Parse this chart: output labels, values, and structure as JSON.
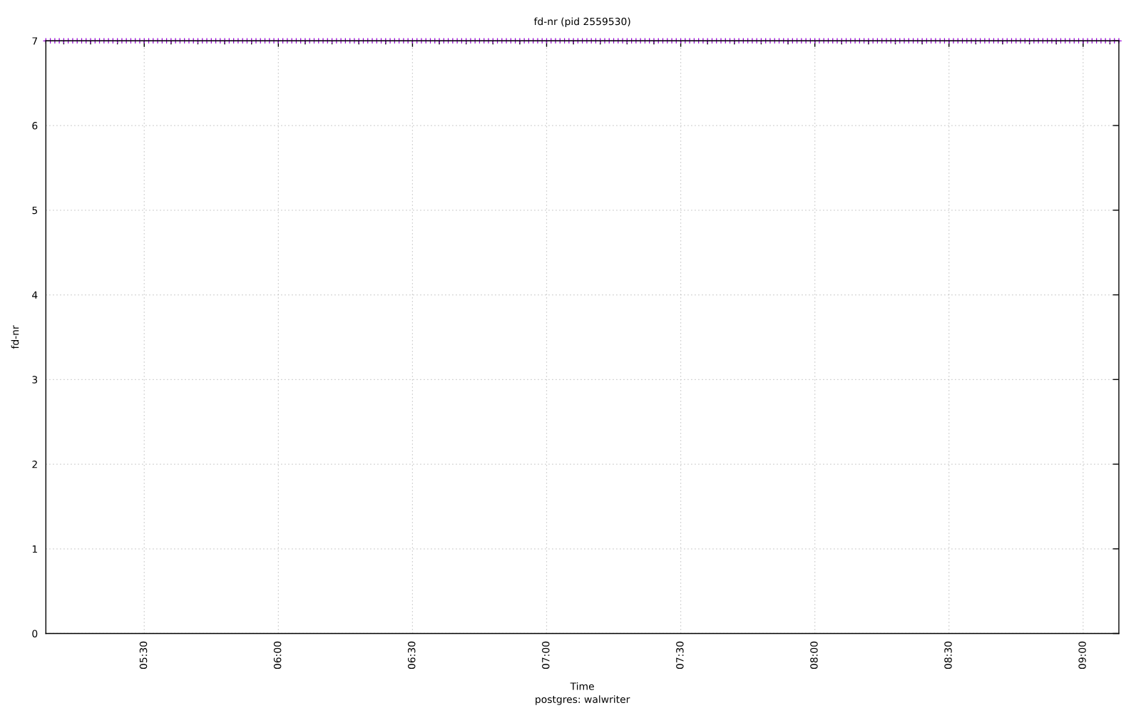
{
  "chart_data": {
    "type": "scatter",
    "title": "fd-nr (pid 2559530)",
    "xlabel": "Time",
    "ylabel": "fd-nr",
    "annotations": [
      "postgres: walwriter"
    ],
    "x": [
      5.1333,
      5.15,
      5.1667,
      5.1833,
      5.2,
      5.2167,
      5.2333,
      5.25,
      5.2667,
      5.2833,
      5.3,
      5.3167,
      5.3333,
      5.35,
      5.3667,
      5.3833,
      5.4,
      5.4167,
      5.4333,
      5.45,
      5.4667,
      5.4833,
      5.5,
      5.5167,
      5.5333,
      5.55,
      5.5667,
      5.5833,
      5.6,
      5.6167,
      5.6333,
      5.65,
      5.6667,
      5.6833,
      5.7,
      5.7167,
      5.7333,
      5.75,
      5.7667,
      5.7833,
      5.8,
      5.8167,
      5.8333,
      5.85,
      5.8667,
      5.8833,
      5.9,
      5.9167,
      5.9333,
      5.95,
      5.9667,
      5.9833,
      6,
      6.0167,
      6.0333,
      6.05,
      6.0667,
      6.0833,
      6.1,
      6.1167,
      6.1333,
      6.15,
      6.1667,
      6.1833,
      6.2,
      6.2167,
      6.2333,
      6.25,
      6.2667,
      6.2833,
      6.3,
      6.3167,
      6.3333,
      6.35,
      6.3667,
      6.3833,
      6.4,
      6.4167,
      6.4333,
      6.45,
      6.4667,
      6.4833,
      6.5,
      6.5167,
      6.5333,
      6.55,
      6.5667,
      6.5833,
      6.6,
      6.6167,
      6.6333,
      6.65,
      6.6667,
      6.6833,
      6.7,
      6.7167,
      6.7333,
      6.75,
      6.7667,
      6.7833,
      6.8,
      6.8167,
      6.8333,
      6.85,
      6.8667,
      6.8833,
      6.9,
      6.9167,
      6.9333,
      6.95,
      6.9667,
      6.9833,
      7,
      7.0167,
      7.0333,
      7.05,
      7.0667,
      7.0833,
      7.1,
      7.1167,
      7.1333,
      7.15,
      7.1667,
      7.1833,
      7.2,
      7.2167,
      7.2333,
      7.25,
      7.2667,
      7.2833,
      7.3,
      7.3167,
      7.3333,
      7.35,
      7.3667,
      7.3833,
      7.4,
      7.4167,
      7.4333,
      7.45,
      7.4667,
      7.4833,
      7.5,
      7.5167,
      7.5333,
      7.55,
      7.5667,
      7.5833,
      7.6,
      7.6167,
      7.6333,
      7.65,
      7.6667,
      7.6833,
      7.7,
      7.7167,
      7.7333,
      7.75,
      7.7667,
      7.7833,
      7.8,
      7.8167,
      7.8333,
      7.85,
      7.8667,
      7.8833,
      7.9,
      7.9167,
      7.9333,
      7.95,
      7.9667,
      7.9833,
      8,
      8.0167,
      8.0333,
      8.05,
      8.0667,
      8.0833,
      8.1,
      8.1167,
      8.1333,
      8.15,
      8.1667,
      8.1833,
      8.2,
      8.2167,
      8.2333,
      8.25,
      8.2667,
      8.2833,
      8.3,
      8.3167,
      8.3333,
      8.35,
      8.3667,
      8.3833,
      8.4,
      8.4167,
      8.4333,
      8.45,
      8.4667,
      8.4833,
      8.5,
      8.5167,
      8.5333,
      8.55,
      8.5667,
      8.5833,
      8.6,
      8.6167,
      8.6333,
      8.65,
      8.6667,
      8.6833,
      8.7,
      8.7167,
      8.7333,
      8.75,
      8.7667,
      8.7833,
      8.8,
      8.8167,
      8.8333,
      8.85,
      8.8667,
      8.8833,
      8.9,
      8.9167,
      8.9333,
      8.95,
      8.9667,
      8.9833,
      9,
      9.0167,
      9.0333,
      9.05,
      9.0667,
      9.0833,
      9.1,
      9.1167,
      9.1333
    ],
    "series": [
      {
        "color": "#9400d3",
        "values": [
          7,
          7,
          7,
          7,
          7,
          7,
          7,
          7,
          7,
          7,
          7,
          7,
          7,
          7,
          7,
          7,
          7,
          7,
          7,
          7,
          7,
          7,
          7,
          7,
          7,
          7,
          7,
          7,
          7,
          7,
          7,
          7,
          7,
          7,
          7,
          7,
          7,
          7,
          7,
          7,
          7,
          7,
          7,
          7,
          7,
          7,
          7,
          7,
          7,
          7,
          7,
          7,
          7,
          7,
          7,
          7,
          7,
          7,
          7,
          7,
          7,
          7,
          7,
          7,
          7,
          7,
          7,
          7,
          7,
          7,
          7,
          7,
          7,
          7,
          7,
          7,
          7,
          7,
          7,
          7,
          7,
          7,
          7,
          7,
          7,
          7,
          7,
          7,
          7,
          7,
          7,
          7,
          7,
          7,
          7,
          7,
          7,
          7,
          7,
          7,
          7,
          7,
          7,
          7,
          7,
          7,
          7,
          7,
          7,
          7,
          7,
          7,
          7,
          7,
          7,
          7,
          7,
          7,
          7,
          7,
          7,
          7,
          7,
          7,
          7,
          7,
          7,
          7,
          7,
          7,
          7,
          7,
          7,
          7,
          7,
          7,
          7,
          7,
          7,
          7,
          7,
          7,
          7,
          7,
          7,
          7,
          7,
          7,
          7,
          7,
          7,
          7,
          7,
          7,
          7,
          7,
          7,
          7,
          7,
          7,
          7,
          7,
          7,
          7,
          7,
          7,
          7,
          7,
          7,
          7,
          7,
          7,
          7,
          7,
          7,
          7,
          7,
          7,
          7,
          7,
          7,
          7,
          7,
          7,
          7,
          7,
          7,
          7,
          7,
          7,
          7,
          7,
          7,
          7,
          7,
          7,
          7,
          7,
          7,
          7,
          7,
          7,
          7,
          7,
          7,
          7,
          7,
          7,
          7,
          7,
          7,
          7,
          7,
          7,
          7,
          7,
          7,
          7,
          7,
          7,
          7,
          7,
          7,
          7,
          7,
          7,
          7,
          7,
          7,
          7,
          7,
          7,
          7,
          7,
          7,
          7,
          7,
          7,
          7,
          7,
          7
        ]
      }
    ],
    "xlim": [
      5.1333,
      9.1333
    ],
    "xticks": [
      {
        "value": 5.2,
        "label": null
      },
      {
        "value": 5.3,
        "label": null
      },
      {
        "value": 5.4,
        "label": null
      },
      {
        "value": 5.5,
        "label": "05:30"
      },
      {
        "value": 5.6,
        "label": null
      },
      {
        "value": 5.7,
        "label": null
      },
      {
        "value": 5.8,
        "label": null
      },
      {
        "value": 5.9,
        "label": null
      },
      {
        "value": 6,
        "label": "06:00"
      },
      {
        "value": 6.1,
        "label": null
      },
      {
        "value": 6.2,
        "label": null
      },
      {
        "value": 6.3,
        "label": null
      },
      {
        "value": 6.4,
        "label": null
      },
      {
        "value": 6.5,
        "label": "06:30"
      },
      {
        "value": 6.6,
        "label": null
      },
      {
        "value": 6.7,
        "label": null
      },
      {
        "value": 6.8,
        "label": null
      },
      {
        "value": 6.9,
        "label": null
      },
      {
        "value": 7,
        "label": "07:00"
      },
      {
        "value": 7.1,
        "label": null
      },
      {
        "value": 7.2,
        "label": null
      },
      {
        "value": 7.3,
        "label": null
      },
      {
        "value": 7.4,
        "label": null
      },
      {
        "value": 7.5,
        "label": "07:30"
      },
      {
        "value": 7.6,
        "label": null
      },
      {
        "value": 7.7,
        "label": null
      },
      {
        "value": 7.8,
        "label": null
      },
      {
        "value": 7.9,
        "label": null
      },
      {
        "value": 8,
        "label": "08:00"
      },
      {
        "value": 8.1,
        "label": null
      },
      {
        "value": 8.2,
        "label": null
      },
      {
        "value": 8.3,
        "label": null
      },
      {
        "value": 8.4,
        "label": null
      },
      {
        "value": 8.5,
        "label": "08:30"
      },
      {
        "value": 8.6,
        "label": null
      },
      {
        "value": 8.7,
        "label": null
      },
      {
        "value": 8.8,
        "label": null
      },
      {
        "value": 8.9,
        "label": null
      },
      {
        "value": 9,
        "label": "09:00"
      },
      {
        "value": 9.1,
        "label": null
      }
    ],
    "ylim": [
      0,
      7
    ],
    "yticks": [
      0,
      1,
      2,
      3,
      4,
      5,
      6,
      7
    ],
    "grid": true,
    "marker": "cross"
  }
}
